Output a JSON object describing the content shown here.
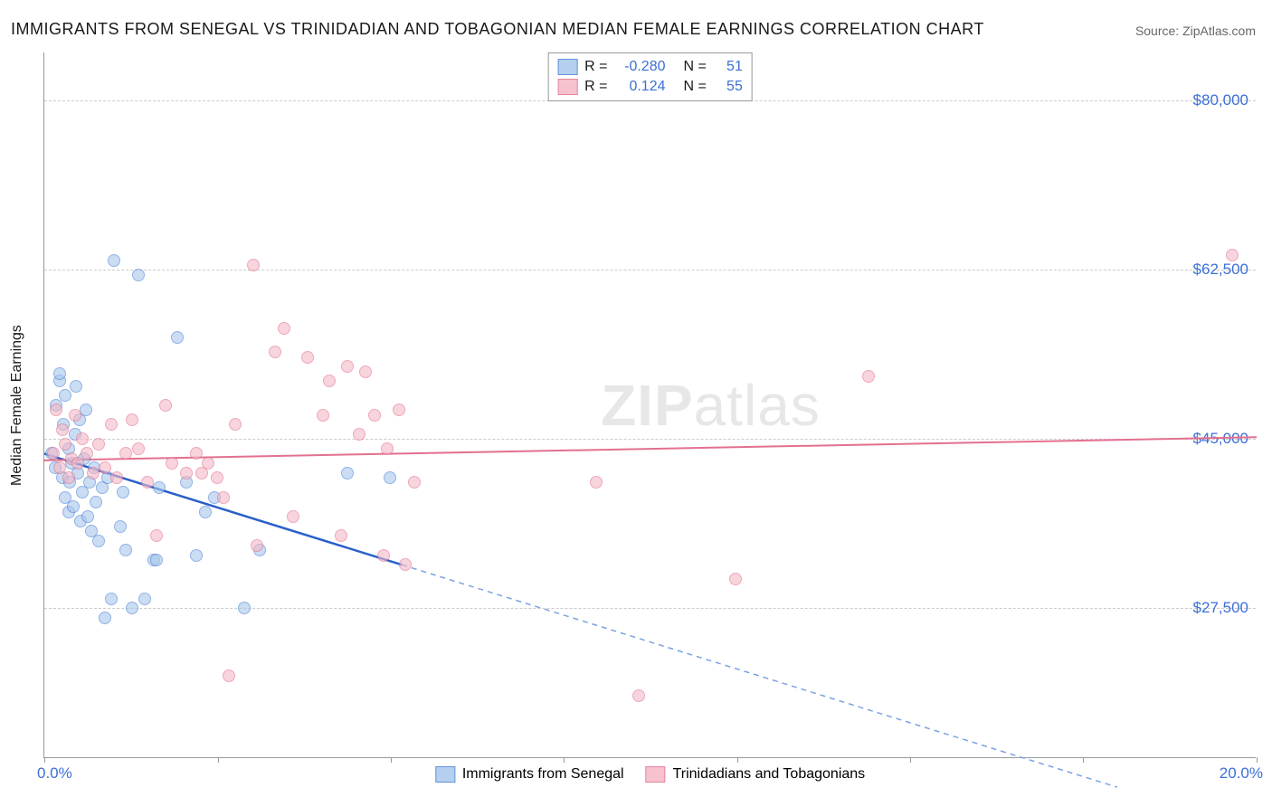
{
  "title": "IMMIGRANTS FROM SENEGAL VS TRINIDADIAN AND TOBAGONIAN MEDIAN FEMALE EARNINGS CORRELATION CHART",
  "source": "Source: ZipAtlas.com",
  "watermark_bold": "ZIP",
  "watermark_rest": "atlas",
  "y_axis_label": "Median Female Earnings",
  "chart": {
    "type": "scatter",
    "xlim": [
      0.0,
      20.0
    ],
    "ylim": [
      12000,
      85000
    ],
    "x_ticks": [
      0.0,
      2.86,
      5.71,
      8.57,
      11.43,
      14.29,
      17.14,
      20.0
    ],
    "x_min_label": "0.0%",
    "x_max_label": "20.0%",
    "y_gridlines": [
      27500,
      45000,
      62500,
      80000
    ],
    "y_tick_labels": [
      "$27,500",
      "$45,000",
      "$62,500",
      "$80,000"
    ],
    "grid_color": "#cccccc",
    "background_color": "#ffffff",
    "axis_color": "#999999",
    "marker_radius": 7,
    "series": [
      {
        "name": "Immigrants from Senegal",
        "legend_label": "Immigrants from Senegal",
        "fill_color": "#a8c8ec",
        "stroke_color": "#4a7fd6",
        "fill_opacity": 0.6,
        "R_label": "R =",
        "R_value": "-0.280",
        "N_label": "N =",
        "N_value": "51",
        "regression": {
          "solid": {
            "x1": 0.0,
            "y1": 43500,
            "x2": 5.9,
            "y2": 32000
          },
          "dashed": {
            "x1": 5.9,
            "y1": 32000,
            "x2": 17.7,
            "y2": 9000
          },
          "solid_color": "#2a5fc9",
          "solid_width": 2.5,
          "dashed_color": "#7aa3e0",
          "dashed_width": 1.5
        },
        "points": [
          {
            "x": 0.12,
            "y": 43500
          },
          {
            "x": 0.18,
            "y": 42000
          },
          {
            "x": 0.2,
            "y": 48500
          },
          {
            "x": 0.25,
            "y": 51000
          },
          {
            "x": 0.25,
            "y": 51800
          },
          {
            "x": 0.3,
            "y": 41000
          },
          {
            "x": 0.32,
            "y": 46500
          },
          {
            "x": 0.35,
            "y": 39000
          },
          {
            "x": 0.35,
            "y": 49500
          },
          {
            "x": 0.4,
            "y": 37500
          },
          {
            "x": 0.4,
            "y": 44000
          },
          {
            "x": 0.42,
            "y": 40500
          },
          {
            "x": 0.45,
            "y": 42500
          },
          {
            "x": 0.48,
            "y": 38000
          },
          {
            "x": 0.5,
            "y": 45500
          },
          {
            "x": 0.52,
            "y": 50500
          },
          {
            "x": 0.55,
            "y": 41500
          },
          {
            "x": 0.58,
            "y": 47000
          },
          {
            "x": 0.6,
            "y": 36500
          },
          {
            "x": 0.62,
            "y": 39500
          },
          {
            "x": 0.65,
            "y": 43000
          },
          {
            "x": 0.68,
            "y": 48000
          },
          {
            "x": 0.72,
            "y": 37000
          },
          {
            "x": 0.75,
            "y": 40500
          },
          {
            "x": 0.78,
            "y": 35500
          },
          {
            "x": 0.82,
            "y": 42000
          },
          {
            "x": 0.85,
            "y": 38500
          },
          {
            "x": 0.9,
            "y": 34500
          },
          {
            "x": 0.95,
            "y": 40000
          },
          {
            "x": 1.0,
            "y": 26500
          },
          {
            "x": 1.05,
            "y": 41000
          },
          {
            "x": 1.1,
            "y": 28500
          },
          {
            "x": 1.15,
            "y": 63500
          },
          {
            "x": 1.25,
            "y": 36000
          },
          {
            "x": 1.3,
            "y": 39500
          },
          {
            "x": 1.35,
            "y": 33500
          },
          {
            "x": 1.45,
            "y": 27500
          },
          {
            "x": 1.55,
            "y": 62000
          },
          {
            "x": 1.65,
            "y": 28500
          },
          {
            "x": 1.8,
            "y": 32500
          },
          {
            "x": 1.85,
            "y": 32500
          },
          {
            "x": 1.9,
            "y": 40000
          },
          {
            "x": 2.2,
            "y": 55500
          },
          {
            "x": 2.35,
            "y": 40500
          },
          {
            "x": 2.5,
            "y": 33000
          },
          {
            "x": 2.65,
            "y": 37500
          },
          {
            "x": 2.8,
            "y": 39000
          },
          {
            "x": 3.3,
            "y": 27500
          },
          {
            "x": 3.55,
            "y": 33500
          },
          {
            "x": 5.0,
            "y": 41500
          },
          {
            "x": 5.7,
            "y": 41000
          }
        ]
      },
      {
        "name": "Trinidadians and Tobagonians",
        "legend_label": "Trinidadians and Tobagonians",
        "fill_color": "#f5b8c6",
        "stroke_color": "#e3708f",
        "fill_opacity": 0.6,
        "R_label": "R =",
        "R_value": "0.124",
        "N_label": "N =",
        "N_value": "55",
        "regression": {
          "solid": {
            "x1": 0.0,
            "y1": 42800,
            "x2": 20.0,
            "y2": 45200
          },
          "solid_color": "#e3708f",
          "solid_width": 2
        },
        "points": [
          {
            "x": 0.15,
            "y": 43500
          },
          {
            "x": 0.2,
            "y": 48000
          },
          {
            "x": 0.25,
            "y": 42000
          },
          {
            "x": 0.3,
            "y": 46000
          },
          {
            "x": 0.35,
            "y": 44500
          },
          {
            "x": 0.4,
            "y": 41000
          },
          {
            "x": 0.45,
            "y": 43000
          },
          {
            "x": 0.5,
            "y": 47500
          },
          {
            "x": 0.55,
            "y": 42500
          },
          {
            "x": 0.62,
            "y": 45000
          },
          {
            "x": 0.7,
            "y": 43500
          },
          {
            "x": 0.8,
            "y": 41500
          },
          {
            "x": 0.9,
            "y": 44500
          },
          {
            "x": 1.0,
            "y": 42000
          },
          {
            "x": 1.1,
            "y": 46500
          },
          {
            "x": 1.2,
            "y": 41000
          },
          {
            "x": 1.35,
            "y": 43500
          },
          {
            "x": 1.45,
            "y": 47000
          },
          {
            "x": 1.55,
            "y": 44000
          },
          {
            "x": 1.7,
            "y": 40500
          },
          {
            "x": 1.85,
            "y": 35000
          },
          {
            "x": 2.0,
            "y": 48500
          },
          {
            "x": 2.1,
            "y": 42500
          },
          {
            "x": 2.35,
            "y": 41500
          },
          {
            "x": 2.5,
            "y": 43500
          },
          {
            "x": 2.6,
            "y": 41500
          },
          {
            "x": 2.7,
            "y": 42500
          },
          {
            "x": 2.85,
            "y": 41000
          },
          {
            "x": 2.95,
            "y": 39000
          },
          {
            "x": 3.05,
            "y": 20500
          },
          {
            "x": 3.15,
            "y": 46500
          },
          {
            "x": 3.45,
            "y": 63000
          },
          {
            "x": 3.5,
            "y": 34000
          },
          {
            "x": 3.8,
            "y": 54000
          },
          {
            "x": 3.95,
            "y": 56500
          },
          {
            "x": 4.1,
            "y": 37000
          },
          {
            "x": 4.35,
            "y": 53500
          },
          {
            "x": 4.6,
            "y": 47500
          },
          {
            "x": 4.7,
            "y": 51000
          },
          {
            "x": 4.9,
            "y": 35000
          },
          {
            "x": 5.0,
            "y": 52500
          },
          {
            "x": 5.2,
            "y": 45500
          },
          {
            "x": 5.3,
            "y": 52000
          },
          {
            "x": 5.45,
            "y": 47500
          },
          {
            "x": 5.6,
            "y": 33000
          },
          {
            "x": 5.65,
            "y": 44000
          },
          {
            "x": 5.85,
            "y": 48000
          },
          {
            "x": 5.95,
            "y": 32000
          },
          {
            "x": 6.1,
            "y": 40500
          },
          {
            "x": 9.1,
            "y": 40500
          },
          {
            "x": 9.8,
            "y": 18500
          },
          {
            "x": 11.4,
            "y": 30500
          },
          {
            "x": 13.6,
            "y": 51500
          },
          {
            "x": 19.6,
            "y": 64000
          }
        ]
      }
    ]
  }
}
